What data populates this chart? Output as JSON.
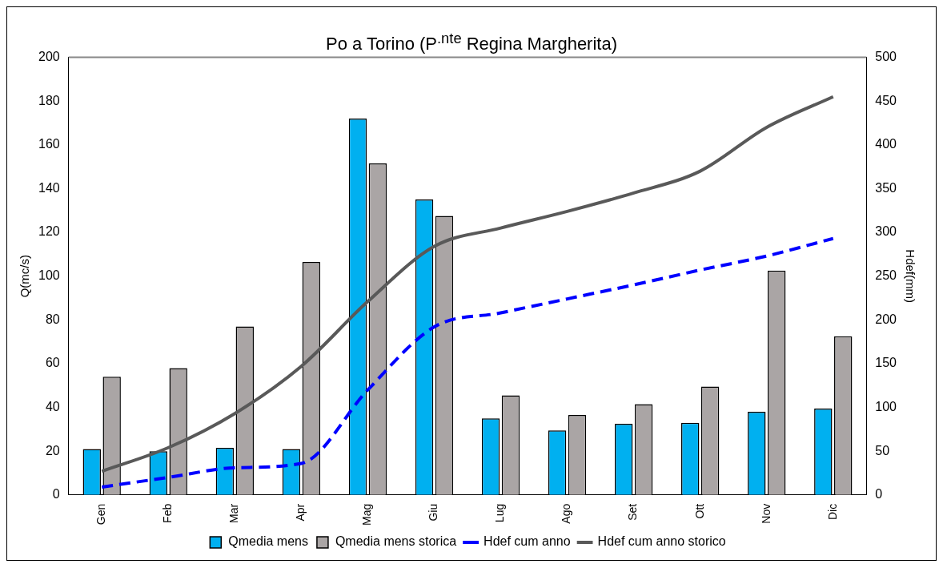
{
  "chart_data": {
    "type": "bar",
    "title": "Po a Torino (P$^{.nte}$ Regina Margherita)",
    "ylabel": "Q(mc/s)",
    "y2label": "Hdef(mm)",
    "categories": [
      "Gen",
      "Feb",
      "Mar",
      "Apr",
      "Mag",
      "Giu",
      "Lug",
      "Ago",
      "Set",
      "Ott",
      "Nov",
      "Dic"
    ],
    "series": [
      {
        "name": "Qmedia mens",
        "color": "#00b0f0",
        "values": [
          21,
          20,
          21.5,
          21,
          172,
          135,
          35,
          29.5,
          32.5,
          33,
          38,
          39.5
        ]
      },
      {
        "name": "Qmedia mens storica",
        "color": "#aaa5a5",
        "values": [
          54,
          58,
          77,
          106.5,
          151.5,
          127.5,
          45.5,
          36.5,
          41.5,
          49.5,
          102.5,
          72.5
        ]
      },
      {
        "name": "Hdef cum anno",
        "type": "line",
        "axis": "y2",
        "line_style": "dashed",
        "color": "#0000ff",
        "values": [
          9,
          20,
          31,
          36,
          120,
          192,
          208,
          224,
          240,
          257,
          273,
          293
        ]
      },
      {
        "name": "Hdef cum anno storico",
        "type": "line",
        "axis": "y2",
        "line_style": "solid",
        "color": "#595959",
        "values": [
          27,
          54,
          93,
          147,
          221,
          284,
          305,
          324,
          345,
          370,
          420,
          455
        ]
      }
    ],
    "ylim": [
      0,
      200
    ],
    "yticks": [
      0,
      20,
      40,
      60,
      80,
      100,
      120,
      140,
      160,
      180,
      200
    ],
    "y2lim": [
      0,
      500
    ],
    "y2ticks": [
      0,
      50,
      100,
      150,
      200,
      250,
      300,
      350,
      400,
      450,
      500
    ],
    "marker": "none",
    "grid": false,
    "legend": "bottom"
  }
}
